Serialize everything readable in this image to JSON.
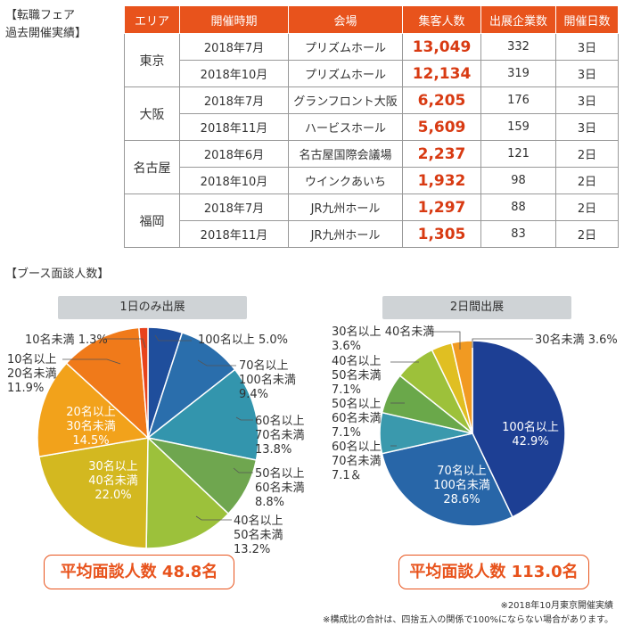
{
  "table_section": {
    "title_line1": "【転職フェア",
    "title_line2": "過去開催実績】"
  },
  "table": {
    "headers": [
      "エリア",
      "開催時期",
      "会場",
      "集客人数",
      "出展企業数",
      "開催日数"
    ],
    "groups": [
      {
        "area": "東京",
        "rows": [
          [
            "2018年7月",
            "プリズムホール",
            "13,049",
            "332",
            "3日"
          ],
          [
            "2018年10月",
            "プリズムホール",
            "12,134",
            "319",
            "3日"
          ]
        ]
      },
      {
        "area": "大阪",
        "rows": [
          [
            "2018年7月",
            "グランフロント大阪",
            "6,205",
            "176",
            "3日"
          ],
          [
            "2018年11月",
            "ハービスホール",
            "5,609",
            "159",
            "3日"
          ]
        ]
      },
      {
        "area": "名古屋",
        "rows": [
          [
            "2018年6月",
            "名古屋国際会議場",
            "2,237",
            "121",
            "2日"
          ],
          [
            "2018年10月",
            "ウインクあいち",
            "1,932",
            "98",
            "2日"
          ]
        ]
      },
      {
        "area": "福岡",
        "rows": [
          [
            "2018年7月",
            "JR九州ホール",
            "1,297",
            "88",
            "2日"
          ],
          [
            "2018年11月",
            "JR九州ホール",
            "1,305",
            "83",
            "2日"
          ]
        ]
      }
    ]
  },
  "booth_section": {
    "title": "【ブース面談人数】"
  },
  "colors": {
    "accent": "#e8531c",
    "header_bg": "#e8531c",
    "badge_bg": "#cfd3d6"
  },
  "chart_data": [
    {
      "type": "pie",
      "title": "1日のみ出展",
      "slices": [
        {
          "label_lines": [
            "100名以上",
            "5.0%"
          ],
          "value": 5.0,
          "color": "#1f4e9c"
        },
        {
          "label_lines": [
            "70名以上",
            "100名未満",
            "9.4%"
          ],
          "value": 9.4,
          "color": "#2a6eac"
        },
        {
          "label_lines": [
            "60名以上",
            "70名未満",
            "13.8%"
          ],
          "value": 13.8,
          "color": "#3395ad"
        },
        {
          "label_lines": [
            "50名以上",
            "60名未満",
            "8.8%"
          ],
          "value": 8.8,
          "color": "#6fa64f"
        },
        {
          "label_lines": [
            "40名以上",
            "50名未満",
            "13.2%"
          ],
          "value": 13.2,
          "color": "#9cc13b"
        },
        {
          "label_lines": [
            "30名以上",
            "40名未満",
            "22.0%"
          ],
          "value": 22.0,
          "color": "#d3b820"
        },
        {
          "label_lines": [
            "20名以上",
            "30名未満",
            "14.5%"
          ],
          "value": 14.5,
          "color": "#f2a21b"
        },
        {
          "label_lines": [
            "10名以上",
            "20名未満",
            "11.9%"
          ],
          "value": 11.9,
          "color": "#f07a1a"
        },
        {
          "label_lines": [
            "10名未満",
            "1.3%"
          ],
          "value": 1.3,
          "color": "#e8431c"
        }
      ],
      "average_label": "平均面談人数 48.8名"
    },
    {
      "type": "pie",
      "title": "2日間出展",
      "slices": [
        {
          "label_lines": [
            "100名以上",
            "42.9%"
          ],
          "value": 42.9,
          "color": "#1d3f94"
        },
        {
          "label_lines": [
            "70名以上",
            "100名未満",
            "28.6%"
          ],
          "value": 28.6,
          "color": "#2866a8"
        },
        {
          "label_lines": [
            "60名以上",
            "70名未満",
            "7.1＆"
          ],
          "value": 7.1,
          "color": "#3a99ad"
        },
        {
          "label_lines": [
            "50名以上",
            "60名未満",
            "7.1%"
          ],
          "value": 7.1,
          "color": "#6aa84a"
        },
        {
          "label_lines": [
            "40名以上",
            "50名未満",
            "7.1%"
          ],
          "value": 7.1,
          "color": "#9dc13a"
        },
        {
          "label_lines": [
            "30名以上",
            "40名未満",
            "3.6%"
          ],
          "value": 3.6,
          "color": "#e0bf22"
        },
        {
          "label_lines": [
            "30名未満",
            "3.6%"
          ],
          "value": 3.6,
          "color": "#f19a22"
        }
      ],
      "average_label": "平均面談人数 113.0名"
    }
  ],
  "footnotes": {
    "note1": "※2018年10月東京開催実績",
    "note2": "※構成比の合計は、四捨五入の関係で100%にならない場合があります。"
  }
}
